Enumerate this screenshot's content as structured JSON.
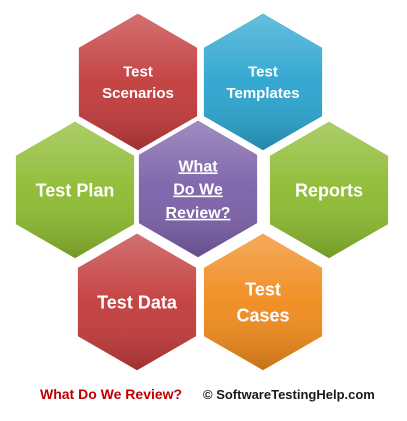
{
  "center": {
    "lines": [
      "What",
      "Do We",
      "Review?"
    ],
    "color": "#7b5fa8"
  },
  "hexagons": [
    {
      "id": "test-scenarios",
      "lines": [
        "Test",
        "Scenarios"
      ],
      "color": "#c23a3a"
    },
    {
      "id": "test-templates",
      "lines": [
        "Test",
        "Templates"
      ],
      "color": "#2aa4cf"
    },
    {
      "id": "test-plan",
      "lines": [
        "Test Plan"
      ],
      "color": "#8cba2f"
    },
    {
      "id": "reports",
      "lines": [
        "Reports"
      ],
      "color": "#8cba2f"
    },
    {
      "id": "test-data",
      "lines": [
        "Test Data"
      ],
      "color": "#c23a3a"
    },
    {
      "id": "test-cases",
      "lines": [
        "Test",
        "Cases"
      ],
      "color": "#f08a1c"
    }
  ],
  "footer": {
    "title": "What Do We Review?",
    "credit": "© SoftwareTestingHelp.com"
  }
}
